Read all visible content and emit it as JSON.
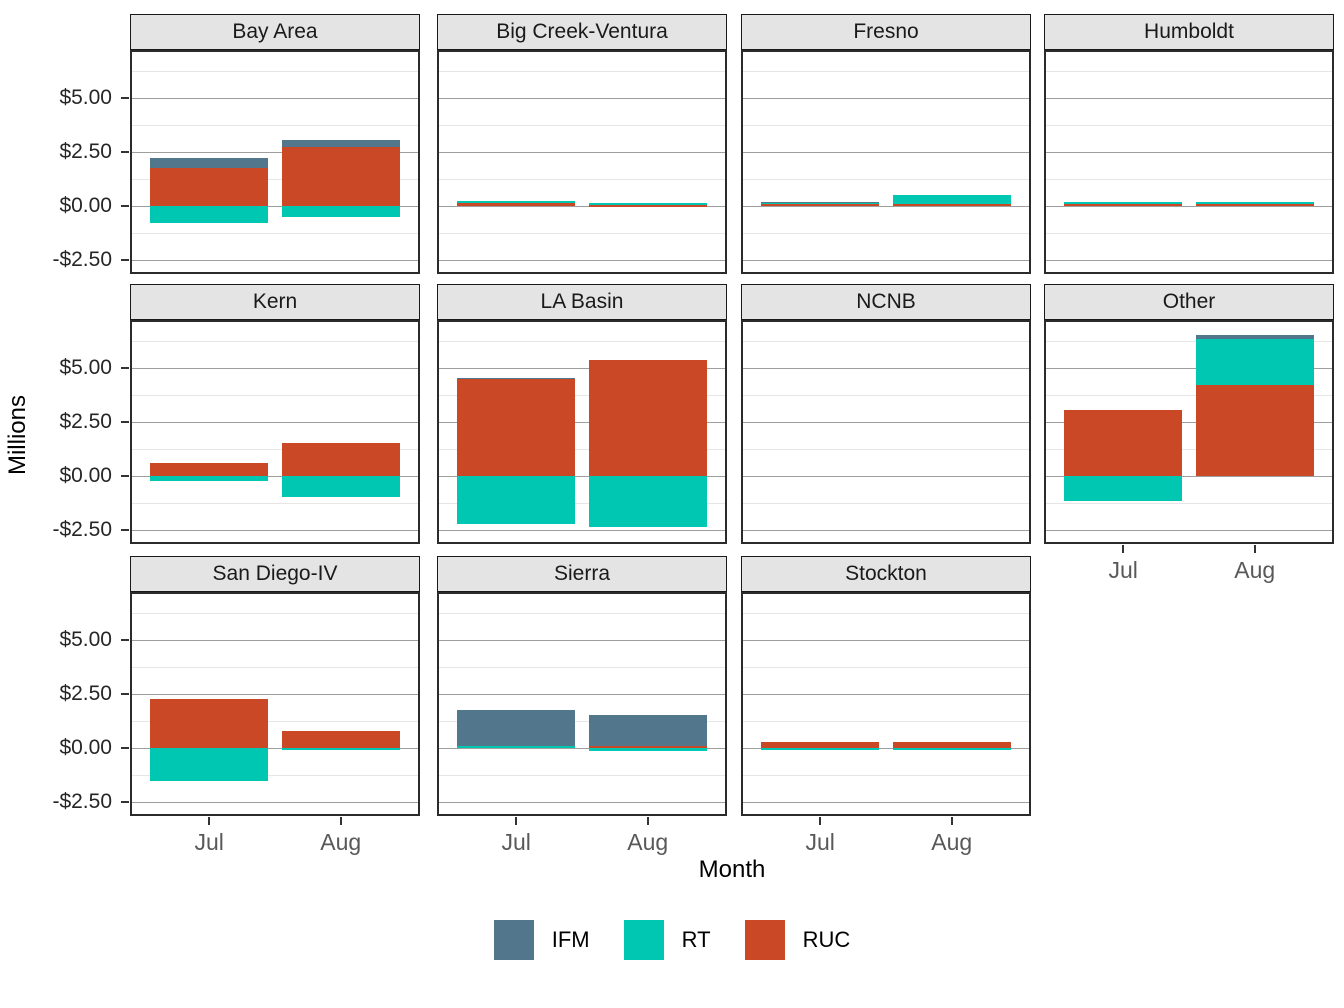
{
  "figure": {
    "y_axis_title": "Millions",
    "x_axis_title": "Month"
  },
  "chart_data": {
    "type": "bar",
    "stacked": true,
    "title": "",
    "xlabel": "Month",
    "ylabel": "Millions",
    "categories": [
      "Jul",
      "Aug"
    ],
    "series_names": [
      "IFM",
      "RT",
      "RUC"
    ],
    "stack_order": [
      "RUC",
      "RT",
      "IFM"
    ],
    "colors": {
      "IFM": "#52768B",
      "RT": "#00C7B2",
      "RUC": "#CB4826"
    },
    "ylim": [
      -3.05,
      7.15
    ],
    "units": "millions of dollars",
    "grid": true,
    "legend_position": "bottom",
    "y_ticks": [
      {
        "label": "$5.00",
        "value": 5.0
      },
      {
        "label": "$2.50",
        "value": 2.5
      },
      {
        "label": "$0.00",
        "value": 0.0
      },
      {
        "label": "-$2.50",
        "value": -2.5
      }
    ],
    "y_minor_ticks": [
      6.25,
      3.75,
      1.25,
      -1.25
    ],
    "facets": [
      {
        "title": "Bay Area",
        "show_x_axis": false,
        "values": {
          "Jul": {
            "IFM": 0.5,
            "RT": -0.8,
            "RUC": 1.75
          },
          "Aug": {
            "IFM": 0.3,
            "RT": -0.5,
            "RUC": 2.75
          }
        }
      },
      {
        "title": "Big Creek-Ventura",
        "show_x_axis": false,
        "values": {
          "Jul": {
            "IFM": 0.0,
            "RT": 0.07,
            "RUC": 0.15
          },
          "Aug": {
            "IFM": 0.0,
            "RT": 0.12,
            "RUC": 0.05
          }
        }
      },
      {
        "title": "Fresno",
        "show_x_axis": false,
        "values": {
          "Jul": {
            "IFM": 0.05,
            "RT": 0.08,
            "RUC": 0.08
          },
          "Aug": {
            "IFM": 0.0,
            "RT": 0.45,
            "RUC": 0.09
          }
        }
      },
      {
        "title": "Humboldt",
        "show_x_axis": false,
        "values": {
          "Jul": {
            "IFM": 0.0,
            "RT": 0.1,
            "RUC": 0.1
          },
          "Aug": {
            "IFM": 0.0,
            "RT": 0.04,
            "RUC": 0.14
          }
        }
      },
      {
        "title": "Kern",
        "show_x_axis": false,
        "values": {
          "Jul": {
            "IFM": 0.0,
            "RT": -0.2,
            "RUC": 0.6
          },
          "Aug": {
            "IFM": 0.0,
            "RT": -0.95,
            "RUC": 1.55
          }
        }
      },
      {
        "title": "LA Basin",
        "show_x_axis": false,
        "values": {
          "Jul": {
            "IFM": 0.07,
            "RT": -2.2,
            "RUC": 4.5
          },
          "Aug": {
            "IFM": 0.0,
            "RT": -2.35,
            "RUC": 5.4
          }
        }
      },
      {
        "title": "NCNB",
        "show_x_axis": false,
        "values": {
          "Jul": {
            "IFM": 0.0,
            "RT": 0.0,
            "RUC": 0.0
          },
          "Aug": {
            "IFM": 0.0,
            "RT": 0.0,
            "RUC": 0.0
          }
        }
      },
      {
        "title": "Other",
        "show_x_axis": true,
        "values": {
          "Jul": {
            "IFM": 0.0,
            "RT": -1.15,
            "RUC": 3.05
          },
          "Aug": {
            "IFM": 0.2,
            "RT": 2.1,
            "RUC": 4.25
          }
        }
      },
      {
        "title": "San Diego-IV",
        "show_x_axis": true,
        "values": {
          "Jul": {
            "IFM": 0.0,
            "RT": -1.5,
            "RUC": 2.3
          },
          "Aug": {
            "IFM": 0.0,
            "RT": -0.05,
            "RUC": 0.78
          }
        }
      },
      {
        "title": "Sierra",
        "show_x_axis": true,
        "values": {
          "Jul": {
            "IFM": 1.67,
            "RT": 0.08,
            "RUC": 0.0
          },
          "Aug": {
            "IFM": 1.42,
            "RT": -0.15,
            "RUC": 0.12
          }
        }
      },
      {
        "title": "Stockton",
        "show_x_axis": true,
        "values": {
          "Jul": {
            "IFM": 0.0,
            "RT": -0.05,
            "RUC": 0.3
          },
          "Aug": {
            "IFM": 0.0,
            "RT": -0.05,
            "RUC": 0.27
          }
        }
      }
    ],
    "legend": [
      {
        "label": "IFM"
      },
      {
        "label": "RT"
      },
      {
        "label": "RUC"
      }
    ]
  }
}
